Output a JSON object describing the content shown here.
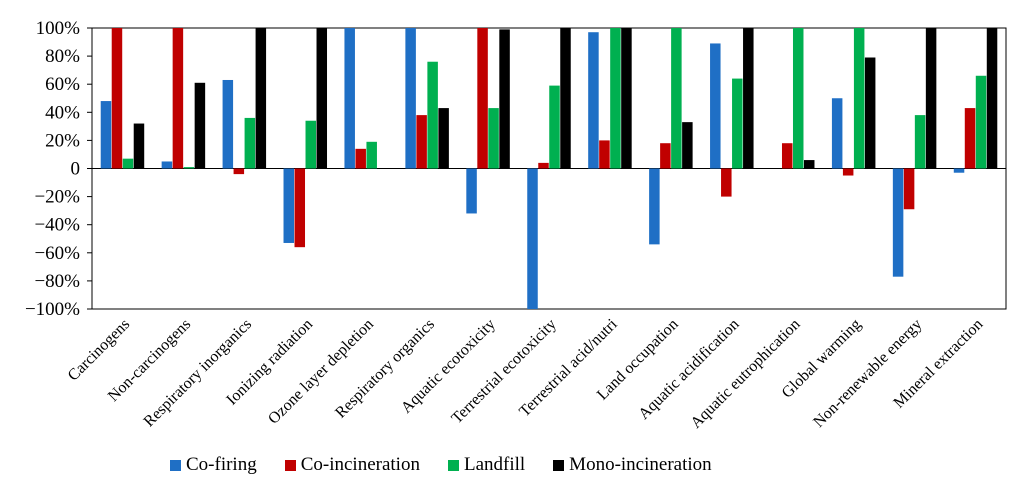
{
  "chart_data": {
    "type": "bar",
    "title": "",
    "xlabel": "",
    "ylabel": "",
    "ylim": [
      -100,
      100
    ],
    "yticks": [
      -100,
      -80,
      -60,
      -40,
      -20,
      0,
      20,
      40,
      60,
      80,
      100
    ],
    "ytick_labels": [
      "−100%",
      "−80%",
      "−60%",
      "−40%",
      "−20%",
      "0",
      "20%",
      "40%",
      "60%",
      "80%",
      "100%"
    ],
    "grid": false,
    "legend_position": "bottom",
    "categories": [
      "Carcinogens",
      "Non-carcinogens",
      "Respiratory inorganics",
      "Ionizing radiation",
      "Ozone layer depletion",
      "Respiratory organics",
      "Aquatic ecotoxicity",
      "Terrestrial ecotoxicity",
      "Terrestrial acid/nutri",
      "Land occupation",
      "Aquatic acidification",
      "Aquatic eutrophication",
      "Global warming",
      "Non-renewable energy",
      "Mineral extraction"
    ],
    "series": [
      {
        "name": "Co-firing",
        "color": "#1f6fc5",
        "values": [
          48,
          5,
          63,
          -53,
          100,
          100,
          -32,
          -100,
          97,
          -54,
          89,
          0,
          50,
          -77,
          -3
        ]
      },
      {
        "name": "Co-incineration",
        "color": "#c00000",
        "values": [
          100,
          100,
          -4,
          -56,
          14,
          38,
          100,
          4,
          20,
          18,
          -20,
          18,
          -5,
          -29,
          43
        ]
      },
      {
        "name": "Landfill",
        "color": "#00b050",
        "values": [
          7,
          1,
          36,
          34,
          19,
          76,
          43,
          59,
          100,
          100,
          64,
          100,
          100,
          38,
          66
        ]
      },
      {
        "name": "Mono-incineration",
        "color": "#000000",
        "values": [
          32,
          61,
          100,
          100,
          0,
          43,
          99,
          100,
          100,
          33,
          100,
          6,
          79,
          100,
          100
        ]
      }
    ]
  }
}
